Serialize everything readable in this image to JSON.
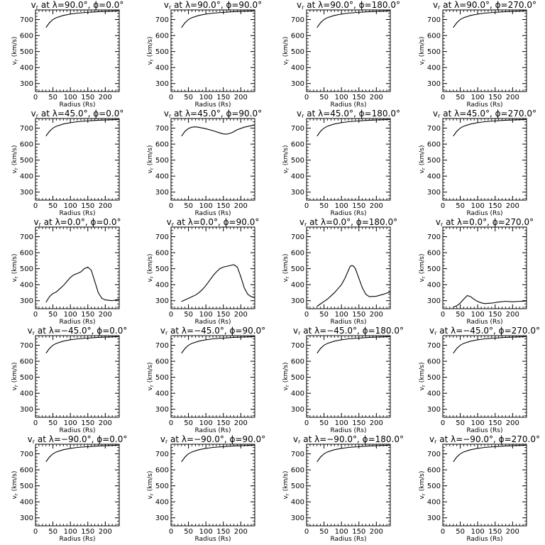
{
  "x_axis_label": "Radius (Rs)",
  "y_axis_label": "v",
  "y_axis_label_sub": "r",
  "y_axis_units": "(km/s)",
  "x_ticks": [
    "0",
    "50",
    "100",
    "150",
    "200"
  ],
  "y_ticks": [
    "300",
    "400",
    "500",
    "600",
    "700"
  ],
  "chart_data": [
    {
      "type": "line",
      "title_parts": [
        "v",
        "r",
        " at λ=90.0°, ϕ=0.0°"
      ],
      "xlim": [
        0,
        240
      ],
      "ylim": [
        250,
        760
      ],
      "x": [
        30,
        40,
        50,
        60,
        80,
        100,
        120,
        150,
        180,
        200,
        240
      ],
      "y": [
        650,
        680,
        700,
        712,
        726,
        734,
        740,
        745,
        749,
        751,
        754
      ]
    },
    {
      "type": "line",
      "title_parts": [
        "v",
        "r",
        " at λ=90.0°, ϕ=90.0°"
      ],
      "xlim": [
        0,
        240
      ],
      "ylim": [
        250,
        760
      ],
      "x": [
        30,
        40,
        50,
        60,
        80,
        100,
        120,
        150,
        180,
        200,
        240
      ],
      "y": [
        650,
        680,
        700,
        712,
        726,
        734,
        740,
        745,
        749,
        751,
        754
      ]
    },
    {
      "type": "line",
      "title_parts": [
        "v",
        "r",
        " at λ=90.0°, ϕ=180.0°"
      ],
      "xlim": [
        0,
        240
      ],
      "ylim": [
        250,
        760
      ],
      "x": [
        30,
        40,
        50,
        60,
        80,
        100,
        120,
        150,
        180,
        200,
        240
      ],
      "y": [
        650,
        680,
        700,
        712,
        726,
        734,
        740,
        745,
        749,
        751,
        754
      ]
    },
    {
      "type": "line",
      "title_parts": [
        "v",
        "r",
        " at λ=90.0°, ϕ=270.0°"
      ],
      "xlim": [
        0,
        240
      ],
      "ylim": [
        250,
        760
      ],
      "x": [
        30,
        40,
        50,
        60,
        80,
        100,
        120,
        150,
        180,
        200,
        240
      ],
      "y": [
        650,
        680,
        700,
        712,
        726,
        734,
        740,
        745,
        749,
        751,
        754
      ]
    },
    {
      "type": "line",
      "title_parts": [
        "v",
        "r",
        " at λ=45.0°, ϕ=0.0°"
      ],
      "xlim": [
        0,
        240
      ],
      "ylim": [
        250,
        760
      ],
      "x": [
        30,
        40,
        50,
        60,
        80,
        100,
        120,
        150,
        180,
        200,
        240
      ],
      "y": [
        650,
        680,
        700,
        712,
        726,
        734,
        740,
        745,
        749,
        751,
        754
      ]
    },
    {
      "type": "line",
      "title_parts": [
        "v",
        "r",
        " at λ=45.0°, ϕ=90.0°"
      ],
      "xlim": [
        0,
        240
      ],
      "ylim": [
        250,
        760
      ],
      "x": [
        30,
        40,
        50,
        60,
        70,
        80,
        100,
        120,
        140,
        150,
        160,
        175,
        190,
        210,
        240
      ],
      "y": [
        650,
        680,
        698,
        706,
        708,
        705,
        696,
        684,
        670,
        664,
        662,
        672,
        690,
        706,
        720
      ]
    },
    {
      "type": "line",
      "title_parts": [
        "v",
        "r",
        " at λ=45.0°, ϕ=180.0°"
      ],
      "xlim": [
        0,
        240
      ],
      "ylim": [
        250,
        760
      ],
      "x": [
        30,
        40,
        50,
        60,
        80,
        100,
        120,
        150,
        180,
        200,
        240
      ],
      "y": [
        650,
        680,
        700,
        712,
        726,
        734,
        740,
        745,
        749,
        751,
        754
      ]
    },
    {
      "type": "line",
      "title_parts": [
        "v",
        "r",
        " at λ=45.0°, ϕ=270.0°"
      ],
      "xlim": [
        0,
        240
      ],
      "ylim": [
        250,
        760
      ],
      "x": [
        30,
        40,
        50,
        60,
        80,
        100,
        120,
        150,
        180,
        200,
        240
      ],
      "y": [
        650,
        680,
        700,
        712,
        726,
        734,
        740,
        745,
        749,
        751,
        754
      ]
    },
    {
      "type": "line",
      "title_parts": [
        "v",
        "r",
        " at λ=0.0°, ϕ=0.0°"
      ],
      "xlim": [
        0,
        240
      ],
      "ylim": [
        250,
        760
      ],
      "x": [
        30,
        40,
        50,
        60,
        70,
        80,
        90,
        100,
        110,
        120,
        130,
        140,
        150,
        160,
        170,
        180,
        190,
        200,
        220,
        240
      ],
      "y": [
        290,
        325,
        345,
        355,
        375,
        395,
        420,
        445,
        462,
        470,
        480,
        500,
        510,
        490,
        420,
        350,
        315,
        305,
        300,
        310
      ]
    },
    {
      "type": "line",
      "title_parts": [
        "v",
        "r",
        " at λ=0.0°, ϕ=90.0°"
      ],
      "xlim": [
        0,
        240
      ],
      "ylim": [
        250,
        760
      ],
      "x": [
        30,
        40,
        50,
        60,
        70,
        80,
        90,
        100,
        110,
        120,
        130,
        140,
        150,
        160,
        170,
        180,
        190,
        200,
        210,
        220,
        230,
        240
      ],
      "y": [
        295,
        305,
        315,
        325,
        335,
        350,
        370,
        395,
        425,
        455,
        480,
        500,
        510,
        515,
        520,
        525,
        510,
        450,
        380,
        340,
        325,
        320
      ]
    },
    {
      "type": "line",
      "title_parts": [
        "v",
        "r",
        " at λ=0.0°, ϕ=180.0°"
      ],
      "xlim": [
        0,
        240
      ],
      "ylim": [
        250,
        760
      ],
      "x": [
        30,
        40,
        50,
        60,
        70,
        80,
        90,
        100,
        110,
        120,
        125,
        130,
        135,
        140,
        150,
        160,
        170,
        180,
        200,
        220,
        240
      ],
      "y": [
        265,
        280,
        295,
        310,
        330,
        350,
        375,
        400,
        440,
        490,
        515,
        520,
        515,
        500,
        440,
        380,
        340,
        325,
        328,
        340,
        355
      ]
    },
    {
      "type": "line",
      "title_parts": [
        "v",
        "r",
        " at λ=0.0°, ϕ=270.0°"
      ],
      "xlim": [
        0,
        240
      ],
      "ylim": [
        250,
        760
      ],
      "x": [
        30,
        40,
        50,
        60,
        70,
        80,
        90,
        100,
        110,
        120,
        140,
        160,
        180,
        200,
        220,
        240
      ],
      "y": [
        260,
        268,
        285,
        310,
        332,
        325,
        308,
        295,
        287,
        282,
        285,
        292,
        296,
        293,
        296,
        298
      ]
    },
    {
      "type": "line",
      "title_parts": [
        "v",
        "r",
        " at λ=−45.0°, ϕ=0.0°"
      ],
      "xlim": [
        0,
        240
      ],
      "ylim": [
        250,
        760
      ],
      "x": [
        30,
        40,
        50,
        60,
        80,
        100,
        120,
        150,
        180,
        200,
        240
      ],
      "y": [
        650,
        680,
        700,
        712,
        726,
        734,
        740,
        745,
        749,
        751,
        754
      ]
    },
    {
      "type": "line",
      "title_parts": [
        "v",
        "r",
        " at λ=−45.0°, ϕ=90.0°"
      ],
      "xlim": [
        0,
        240
      ],
      "ylim": [
        250,
        760
      ],
      "x": [
        30,
        40,
        50,
        60,
        80,
        100,
        120,
        150,
        180,
        200,
        240
      ],
      "y": [
        650,
        680,
        700,
        712,
        726,
        734,
        740,
        745,
        749,
        751,
        754
      ]
    },
    {
      "type": "line",
      "title_parts": [
        "v",
        "r",
        " at λ=−45.0°, ϕ=180.0°"
      ],
      "xlim": [
        0,
        240
      ],
      "ylim": [
        250,
        760
      ],
      "x": [
        30,
        40,
        50,
        60,
        80,
        100,
        120,
        150,
        180,
        200,
        240
      ],
      "y": [
        650,
        680,
        700,
        712,
        726,
        734,
        740,
        745,
        749,
        751,
        754
      ]
    },
    {
      "type": "line",
      "title_parts": [
        "v",
        "r",
        " at λ=−45.0°, ϕ=270.0°"
      ],
      "xlim": [
        0,
        240
      ],
      "ylim": [
        250,
        760
      ],
      "x": [
        30,
        40,
        50,
        60,
        80,
        100,
        120,
        150,
        180,
        200,
        240
      ],
      "y": [
        650,
        680,
        700,
        712,
        726,
        734,
        740,
        745,
        749,
        751,
        754
      ]
    },
    {
      "type": "line",
      "title_parts": [
        "v",
        "r",
        " at λ=−90.0°, ϕ=0.0°"
      ],
      "xlim": [
        0,
        240
      ],
      "ylim": [
        250,
        760
      ],
      "x": [
        30,
        40,
        50,
        60,
        80,
        100,
        120,
        150,
        180,
        200,
        240
      ],
      "y": [
        650,
        680,
        700,
        712,
        726,
        734,
        740,
        745,
        749,
        751,
        754
      ]
    },
    {
      "type": "line",
      "title_parts": [
        "v",
        "r",
        " at λ=−90.0°, ϕ=90.0°"
      ],
      "xlim": [
        0,
        240
      ],
      "ylim": [
        250,
        760
      ],
      "x": [
        30,
        40,
        50,
        60,
        80,
        100,
        120,
        150,
        180,
        200,
        240
      ],
      "y": [
        650,
        680,
        700,
        712,
        726,
        734,
        740,
        745,
        749,
        751,
        754
      ]
    },
    {
      "type": "line",
      "title_parts": [
        "v",
        "r",
        " at λ=−90.0°, ϕ=180.0°"
      ],
      "xlim": [
        0,
        240
      ],
      "ylim": [
        250,
        760
      ],
      "x": [
        30,
        40,
        50,
        60,
        80,
        100,
        120,
        150,
        180,
        200,
        240
      ],
      "y": [
        650,
        680,
        700,
        712,
        726,
        734,
        740,
        745,
        749,
        751,
        754
      ]
    },
    {
      "type": "line",
      "title_parts": [
        "v",
        "r",
        " at λ=−90.0°, ϕ=270.0°"
      ],
      "xlim": [
        0,
        240
      ],
      "ylim": [
        250,
        760
      ],
      "x": [
        30,
        40,
        50,
        60,
        80,
        100,
        120,
        150,
        180,
        200,
        240
      ],
      "y": [
        650,
        680,
        700,
        712,
        726,
        734,
        740,
        745,
        749,
        751,
        754
      ]
    }
  ]
}
